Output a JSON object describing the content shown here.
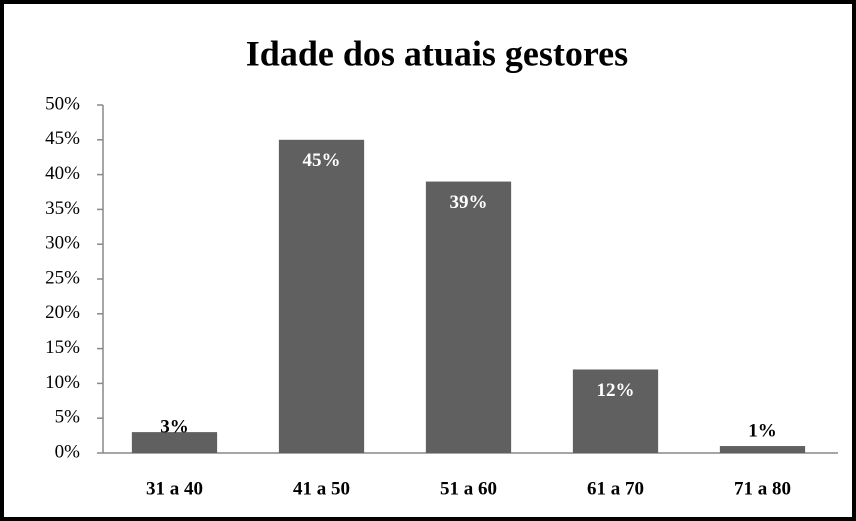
{
  "chart_data": {
    "type": "bar",
    "title": "Idade dos atuais gestores",
    "categories": [
      "31  a 40",
      "41 a 50",
      "51 a 60",
      "61  a 70",
      "71 a 80"
    ],
    "values": [
      3,
      45,
      39,
      12,
      1
    ],
    "value_labels": [
      "3%",
      "45%",
      "39%",
      "12%",
      "1%"
    ],
    "color": "#606060",
    "ylim": [
      0,
      50
    ],
    "yticks": [
      {
        "value": 0,
        "label": "0%"
      },
      {
        "value": 5,
        "label": "5%"
      },
      {
        "value": 10,
        "label": "10%"
      },
      {
        "value": 15,
        "label": "15%"
      },
      {
        "value": 20,
        "label": "20%"
      },
      {
        "value": 25,
        "label": "25%"
      },
      {
        "value": 30,
        "label": "30%"
      },
      {
        "value": 35,
        "label": "35%"
      },
      {
        "value": 40,
        "label": "40%"
      },
      {
        "value": 45,
        "label": "45%"
      },
      {
        "value": 50,
        "label": "50%"
      }
    ]
  }
}
